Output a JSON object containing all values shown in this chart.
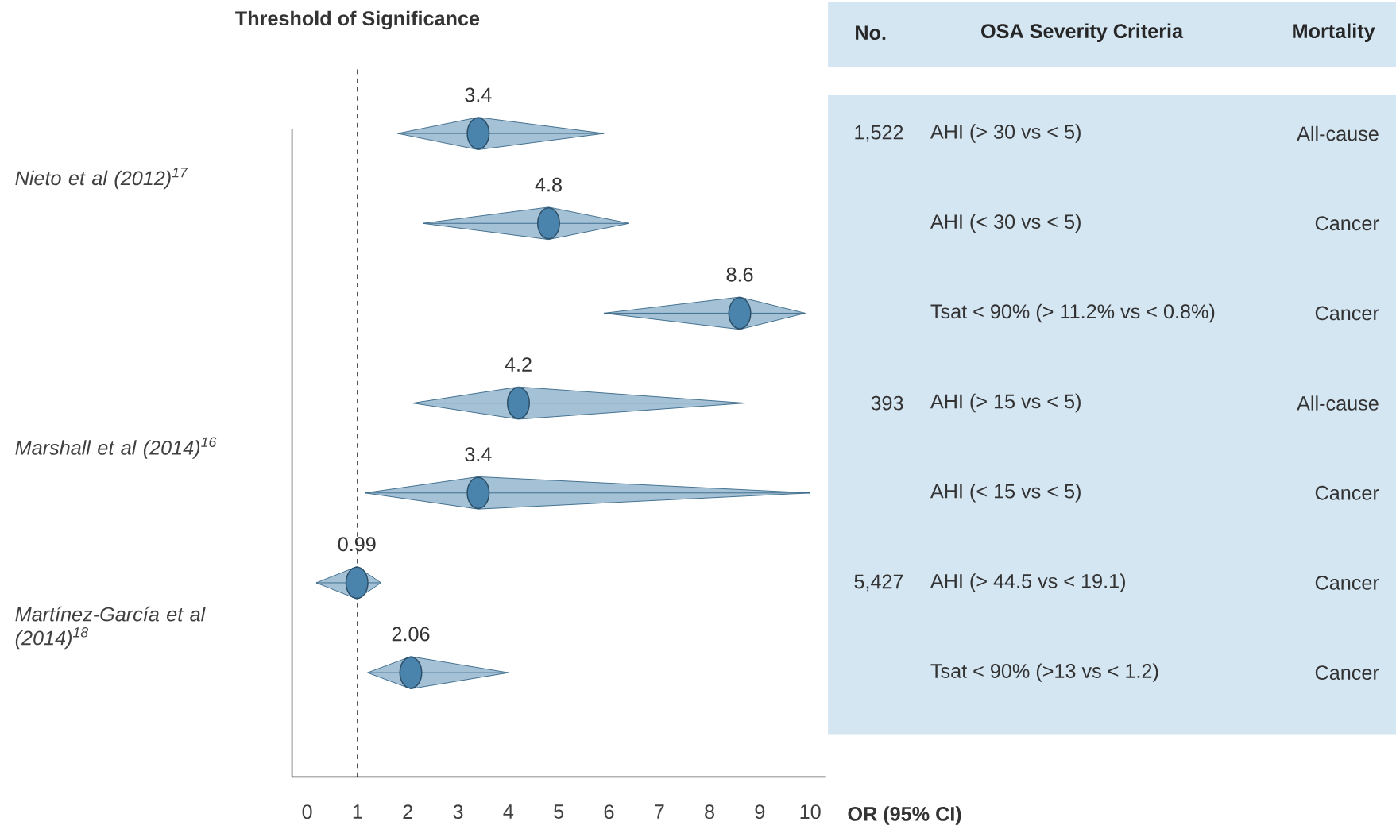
{
  "chart_data": {
    "type": "scatter",
    "orientation": "horizontal",
    "marker": "circle",
    "color": "#4a84ad",
    "categories": [
      "AHI (> 30 vs < 5)",
      "AHI (< 30 vs < 5)",
      "Tsat < 90% (> 11.2% vs < 0.8%)",
      "AHI (> 15 vs < 5)",
      "AHI (< 15 vs < 5)",
      "AHI (> 44.5 vs < 19.1)",
      "Tsat < 90% (>13 vs < 1.2)"
    ],
    "values": [
      3.4,
      4.8,
      8.6,
      4.2,
      3.4,
      0.99,
      2.06
    ],
    "errors": [
      [
        1.8,
        5.9
      ],
      [
        2.3,
        6.4
      ],
      [
        5.9,
        9.9
      ],
      [
        2.1,
        8.7
      ],
      [
        1.15,
        10
      ],
      [
        0.18,
        1.47
      ],
      [
        1.2,
        4.0
      ]
    ],
    "data_labels": true,
    "xlim": [
      -0.3,
      10.3
    ],
    "xticks": [
      0,
      1,
      2,
      3,
      4,
      5,
      6,
      7,
      8,
      9,
      10
    ],
    "xlabel": "OR (95% CI)",
    "ref_lines": [
      {
        "axis": "x",
        "value": 1,
        "label": "Threshold of Significance",
        "line_style": "dashed"
      }
    ],
    "annotations": [
      "No.",
      "OSA Severity Criteria",
      "Mortality",
      "1,522",
      "393",
      "5,427",
      "All-cause",
      "Cancer",
      "Cancer",
      "All-cause",
      "Cancer",
      "Cancer",
      "Cancer",
      "Nieto et al (2012)$^{17}$",
      "Marshall et al (2014)$^{16}$",
      "Martínez-García et al (2014)$^{18}$"
    ]
  }
}
